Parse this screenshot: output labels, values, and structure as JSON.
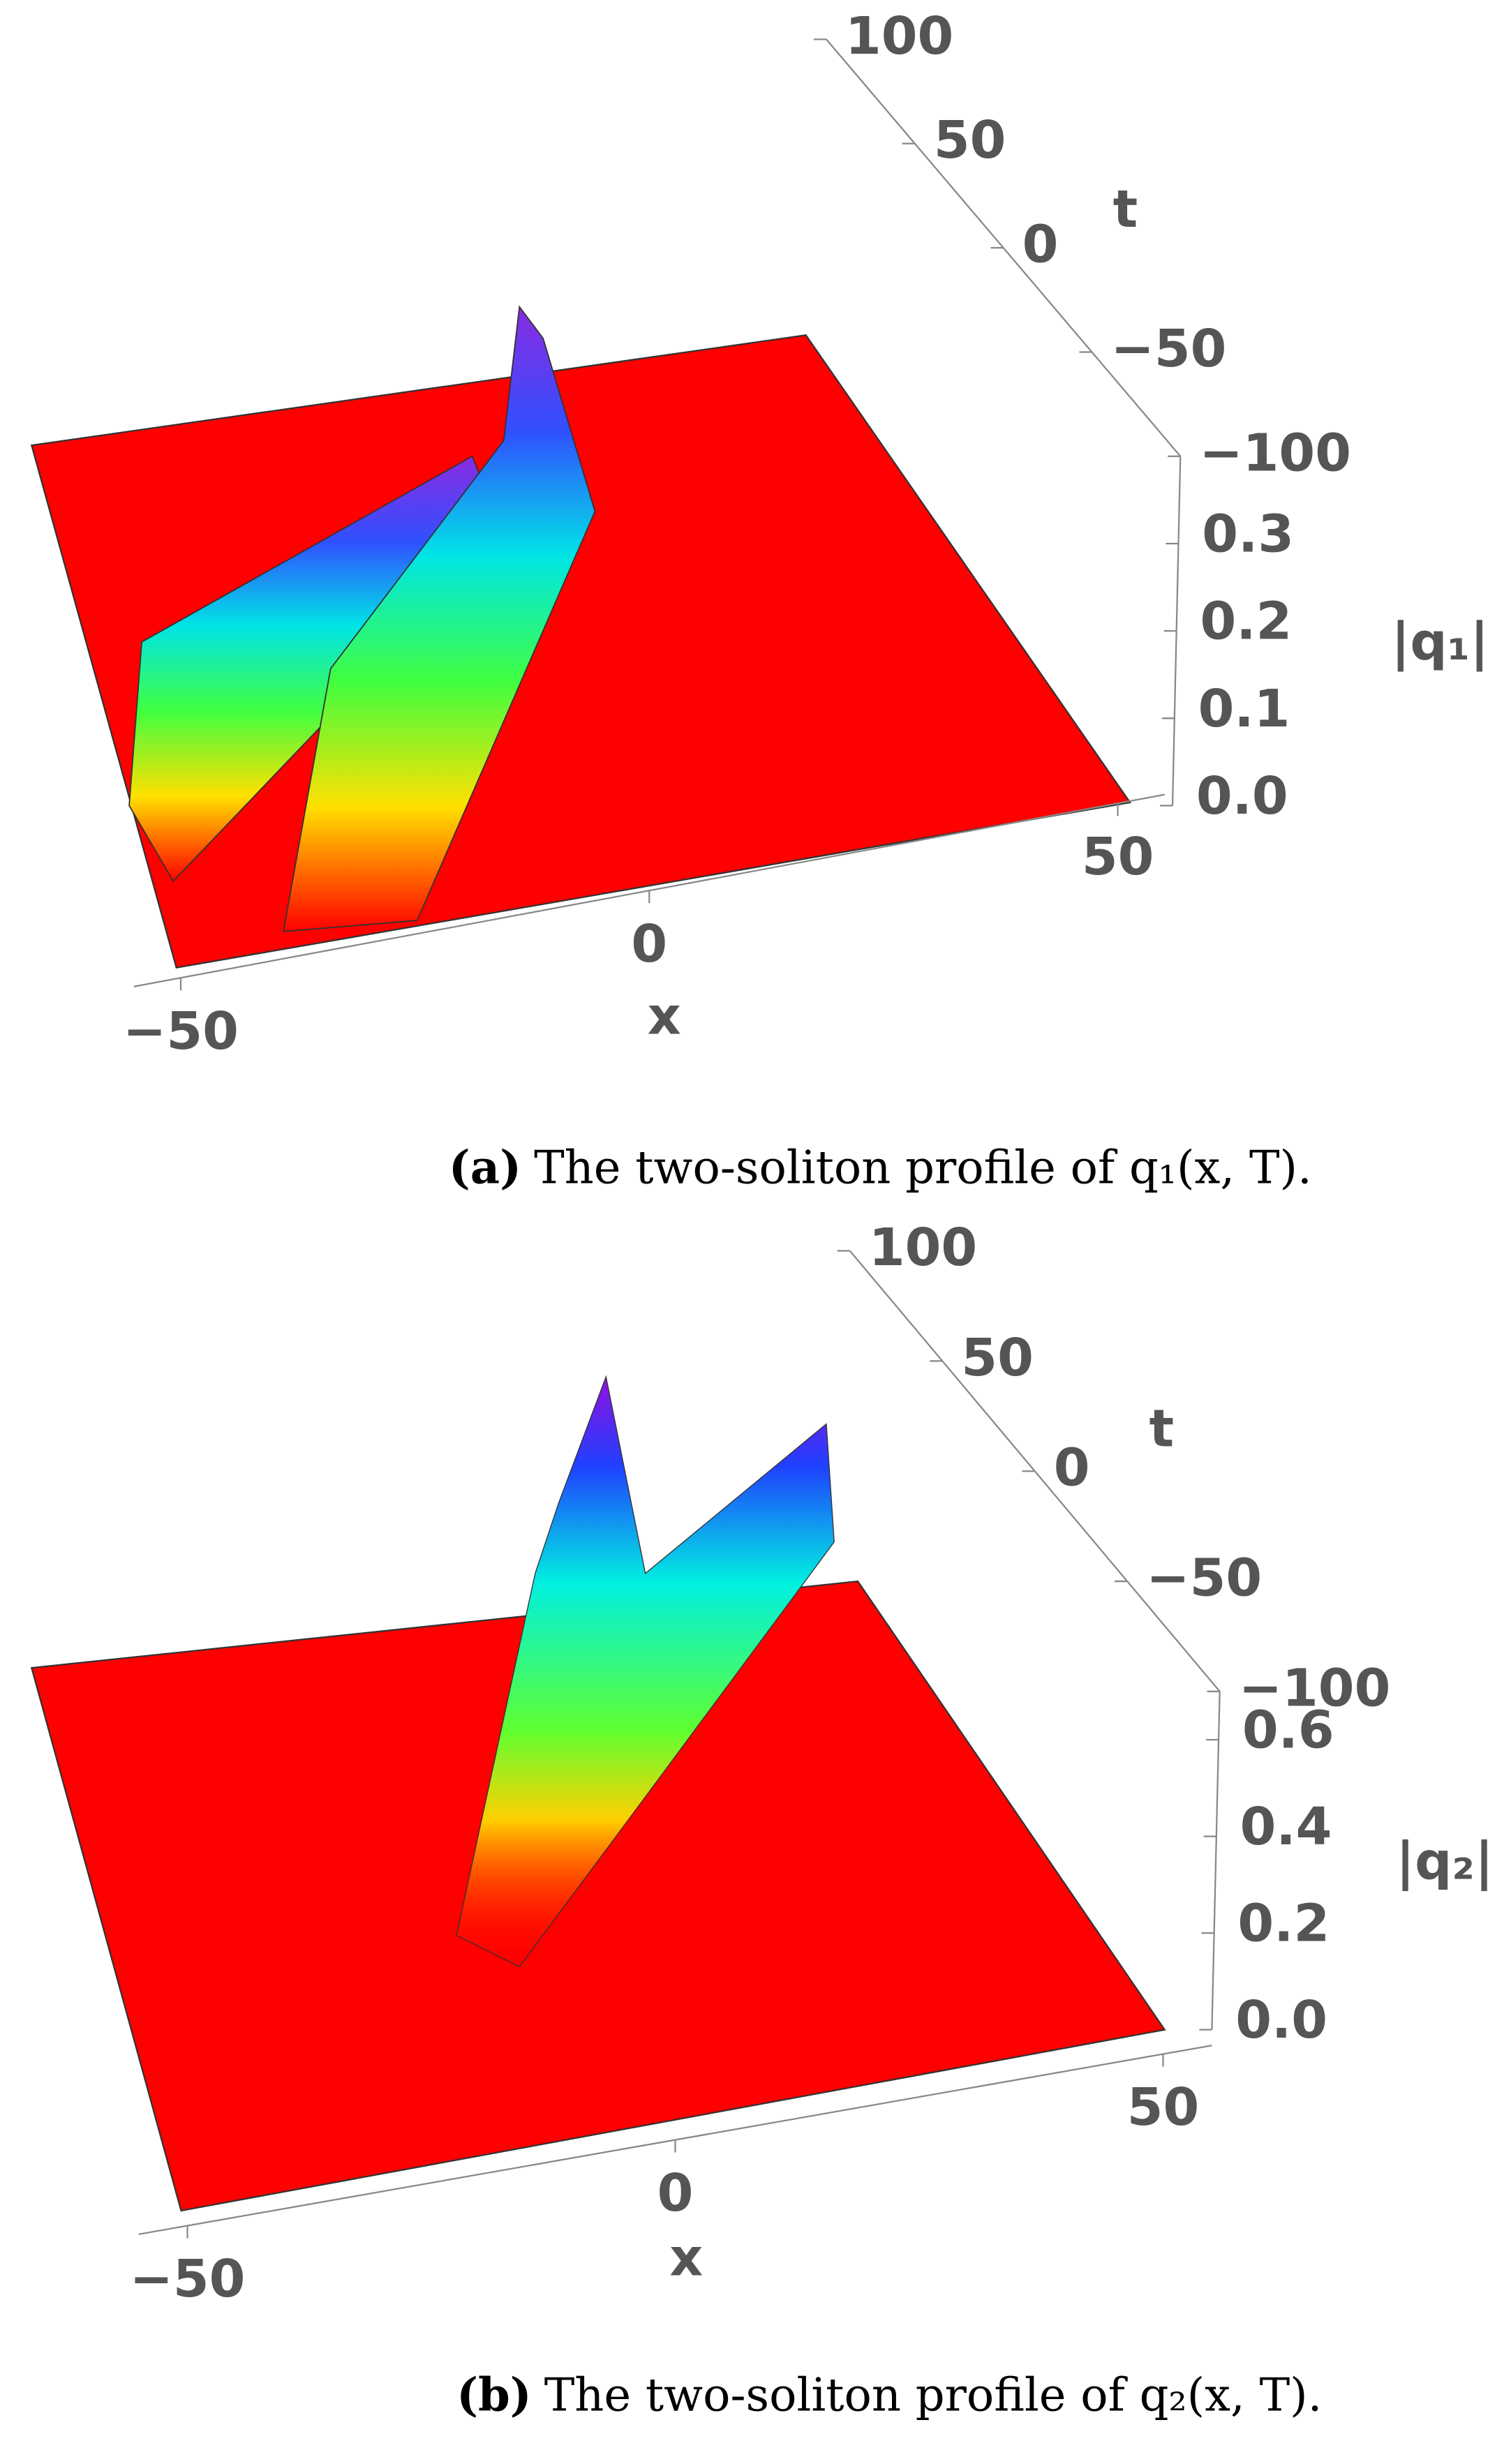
{
  "chart_data": [
    {
      "type": "surface3d",
      "caption_tag": "(a)",
      "caption": "The two-soliton profile of q₁(x, T).",
      "xlabel": "x",
      "ylabel": "t",
      "zlabel": "|q₁|",
      "xlim": [
        -55,
        55
      ],
      "ylim": [
        -100,
        100
      ],
      "zlim": [
        0,
        0.4
      ],
      "xticks": [
        {
          "value": -50,
          "label": "−50"
        },
        0,
        50
      ],
      "yticks": [
        {
          "value": -100,
          "label": "−100"
        },
        {
          "value": -50,
          "label": "−50"
        },
        0,
        50,
        100
      ],
      "zticks": [
        {
          "value": 0,
          "label": "0.0"
        },
        0.1,
        0.2,
        0.3
      ]
    },
    {
      "type": "surface3d",
      "caption_tag": "(b)",
      "caption": "The two-soliton profile of q₂(x, T).",
      "xlabel": "x",
      "ylabel": "t",
      "zlabel": "|q₂|",
      "xlim": [
        -55,
        55
      ],
      "ylim": [
        -100,
        100
      ],
      "zlim": [
        0,
        0.7
      ],
      "xticks": [
        {
          "value": -50,
          "label": "−50"
        },
        0,
        50
      ],
      "yticks": [
        {
          "value": -100,
          "label": "−100"
        },
        {
          "value": -50,
          "label": "−50"
        },
        0,
        50,
        100
      ],
      "zticks": [
        {
          "value": 0,
          "label": "0.0"
        },
        0.2,
        0.4,
        0.6
      ]
    }
  ]
}
